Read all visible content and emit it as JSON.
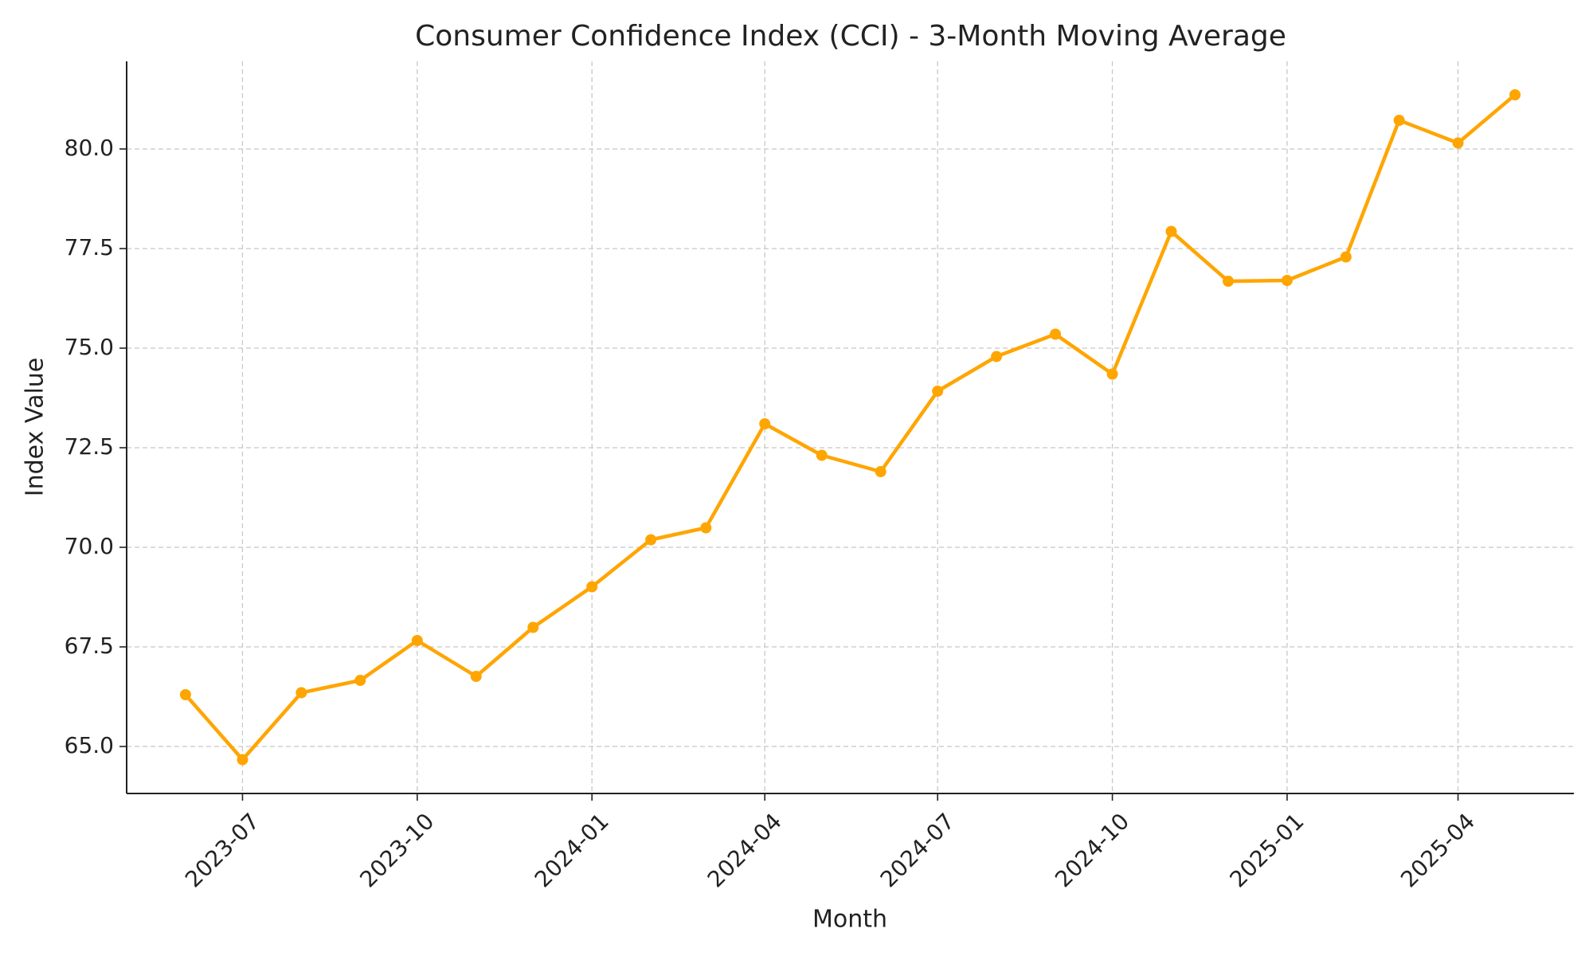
{
  "chart_data": {
    "type": "line",
    "title": "Consumer Confidence Index (CCI) - 3-Month Moving Average",
    "x_label": "Month",
    "y_label": "Index Value",
    "x": [
      "2023-06",
      "2023-07",
      "2023-08",
      "2023-09",
      "2023-10",
      "2023-11",
      "2023-12",
      "2024-01",
      "2024-02",
      "2024-03",
      "2024-04",
      "2024-05",
      "2024-06",
      "2024-07",
      "2024-08",
      "2024-09",
      "2024-10",
      "2024-11",
      "2024-12",
      "2025-01",
      "2025-02",
      "2025-03",
      "2025-04",
      "2025-05"
    ],
    "series": [
      {
        "name": "CCI 3-Month Moving Average",
        "color": "#ffa500",
        "values": [
          66.3,
          64.67,
          66.35,
          66.66,
          67.66,
          66.76,
          67.99,
          69.01,
          70.19,
          70.49,
          73.1,
          72.31,
          71.9,
          73.92,
          74.79,
          75.35,
          74.35,
          77.93,
          76.68,
          76.7,
          77.29,
          80.72,
          80.15,
          81.36
        ]
      }
    ],
    "xlim": [
      "2023-05",
      "2025-06"
    ],
    "xticks": [
      "2023-07",
      "2023-10",
      "2024-01",
      "2024-04",
      "2024-07",
      "2024-10",
      "2025-01",
      "2025-04"
    ],
    "ylim": [
      63.82,
      82.2
    ],
    "yticks": [
      {
        "value": 65,
        "label": "65.0"
      },
      {
        "value": 67.5,
        "label": "67.5"
      },
      {
        "value": 70,
        "label": "70.0"
      },
      {
        "value": 72.5,
        "label": "72.5"
      },
      {
        "value": 75,
        "label": "75.0"
      },
      {
        "value": 77.5,
        "label": "77.5"
      },
      {
        "value": 80,
        "label": "80.0"
      }
    ],
    "grid": true,
    "markers": true
  }
}
